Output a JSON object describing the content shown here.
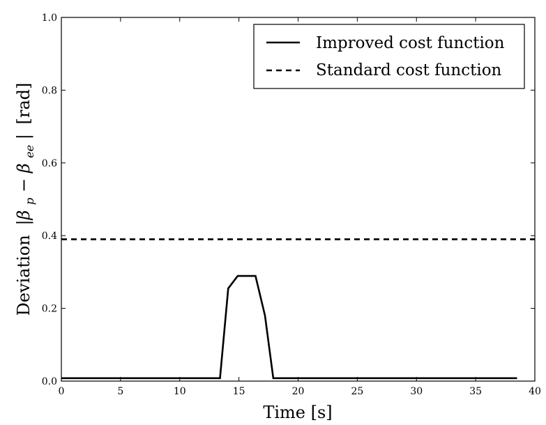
{
  "chart_data": {
    "type": "line",
    "xlabel": "Time [s]",
    "ylabel": "Deviation |β_p − β_ee| [rad]",
    "ylabel_parts": {
      "word": "Deviation",
      "math_open": "|β",
      "sub_p": "p",
      "minus": " − β",
      "sub_ee": "ee",
      "math_close": "|",
      "unit": "[rad]"
    },
    "xlim": [
      0,
      40
    ],
    "ylim": [
      0,
      1.0
    ],
    "xticks": [
      0,
      5,
      10,
      15,
      20,
      25,
      30,
      35,
      40
    ],
    "xtick_labels": [
      "0",
      "5",
      "10",
      "15",
      "20",
      "25",
      "30",
      "35",
      "40"
    ],
    "yticks": [
      0.0,
      0.2,
      0.4,
      0.6,
      0.8,
      1.0
    ],
    "ytick_labels": [
      "0.0",
      "0.2",
      "0.4",
      "0.6",
      "0.8",
      "1.0"
    ],
    "grid": false,
    "legend_position": "top-right",
    "series": [
      {
        "name": "Improved cost function",
        "style": "solid",
        "color": "#000000",
        "x": [
          0,
          13.4,
          14.1,
          14.9,
          16.4,
          17.2,
          17.9,
          38.5
        ],
        "y": [
          0.008,
          0.008,
          0.255,
          0.289,
          0.289,
          0.18,
          0.008,
          0.008
        ]
      },
      {
        "name": "Standard cost function",
        "style": "dashed",
        "color": "#000000",
        "x": [
          0,
          40
        ],
        "y": [
          0.39,
          0.39
        ]
      }
    ]
  }
}
